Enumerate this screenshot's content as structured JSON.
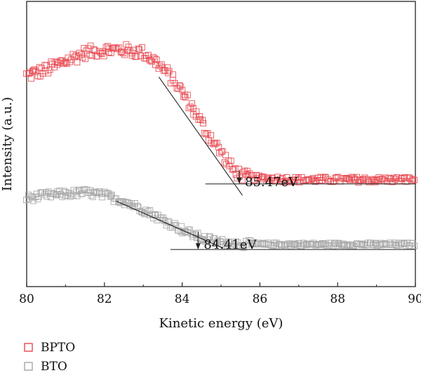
{
  "chart_data": {
    "type": "scatter",
    "title": "",
    "xlabel": "Kinetic energy (eV)",
    "ylabel": "Intensity (a.u.)",
    "xlim": [
      80,
      90
    ],
    "xticks": [
      80,
      82,
      84,
      86,
      88,
      90
    ],
    "y_axis_ticks": false,
    "grid": false,
    "legend_position": "bottom-left",
    "series": [
      {
        "name": "BPTO",
        "color": "#e8474f",
        "marker": "open-square",
        "curve": [
          [
            80.0,
            0.74
          ],
          [
            80.5,
            0.76
          ],
          [
            81.0,
            0.79
          ],
          [
            81.5,
            0.82
          ],
          [
            82.0,
            0.83
          ],
          [
            82.5,
            0.83
          ],
          [
            83.0,
            0.82
          ],
          [
            83.4,
            0.78
          ],
          [
            83.8,
            0.72
          ],
          [
            84.2,
            0.64
          ],
          [
            84.6,
            0.55
          ],
          [
            85.0,
            0.47
          ],
          [
            85.3,
            0.41
          ],
          [
            85.6,
            0.385
          ],
          [
            86.0,
            0.38
          ],
          [
            87.0,
            0.375
          ],
          [
            90.0,
            0.375
          ]
        ],
        "onset_ev": 85.47,
        "onset_label": "85.47eV",
        "tangent": [
          [
            83.4,
            0.735
          ],
          [
            85.55,
            0.32
          ]
        ],
        "baseline": [
          [
            84.6,
            0.36
          ],
          [
            90.0,
            0.36
          ]
        ]
      },
      {
        "name": "BTO",
        "color": "#a6a6a6",
        "marker": "open-square",
        "curve": [
          [
            80.0,
            0.31
          ],
          [
            80.5,
            0.32
          ],
          [
            81.0,
            0.325
          ],
          [
            81.5,
            0.33
          ],
          [
            82.0,
            0.32
          ],
          [
            82.5,
            0.3
          ],
          [
            83.0,
            0.27
          ],
          [
            83.5,
            0.235
          ],
          [
            84.0,
            0.2
          ],
          [
            84.5,
            0.17
          ],
          [
            85.0,
            0.155
          ],
          [
            85.5,
            0.15
          ],
          [
            86.0,
            0.148
          ],
          [
            87.0,
            0.148
          ],
          [
            90.0,
            0.148
          ]
        ],
        "onset_ev": 84.41,
        "onset_label": "84.41eV",
        "tangent": [
          [
            82.3,
            0.3
          ],
          [
            85.05,
            0.135
          ]
        ],
        "baseline": [
          [
            83.7,
            0.13
          ],
          [
            90.0,
            0.13
          ]
        ]
      }
    ]
  }
}
